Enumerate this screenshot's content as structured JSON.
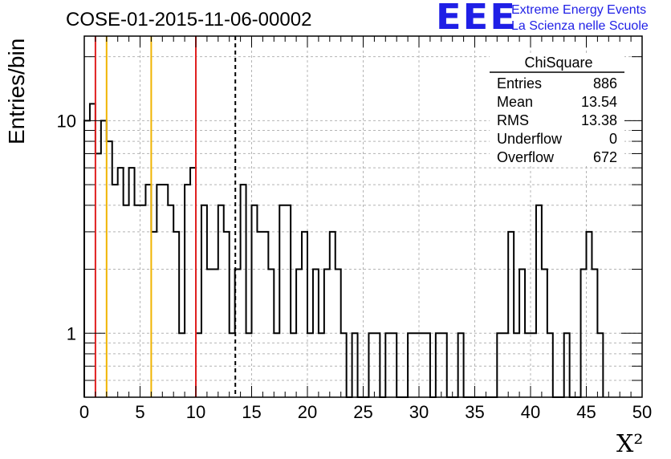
{
  "header": {
    "title": "COSE-01-2015-11-06-00002",
    "logo_text": "EEE",
    "logo_line1": "Extreme Energy Events",
    "logo_line2": "La Scienza nelle Scuole"
  },
  "colors": {
    "logo": "#1f1fe6",
    "histogram": "#000000",
    "red_line": "#e02020",
    "yellow_line": "#f0b400",
    "grid": "#b4b4b4"
  },
  "chart_data": {
    "type": "bar",
    "subtype": "step-histogram",
    "title": "COSE-01-2015-11-06-00002",
    "xlabel": "X²",
    "ylabel": "Entries/bin",
    "xlim": [
      0,
      50
    ],
    "ylim": [
      0.5,
      25
    ],
    "yscale": "log",
    "grid": true,
    "bin_width": 0.5,
    "bin_start": 0,
    "values": [
      10,
      12,
      7,
      10,
      8,
      5,
      6,
      4,
      6,
      4,
      4,
      5,
      3,
      5,
      5,
      4,
      3,
      1,
      5,
      6,
      1,
      4,
      2,
      2,
      4,
      3,
      1,
      2,
      5,
      1,
      4,
      3,
      3,
      2,
      1,
      4,
      4,
      1,
      2,
      3,
      1,
      2,
      1,
      2,
      3,
      2,
      1,
      0,
      1,
      0,
      0,
      1,
      1,
      0,
      1,
      1,
      0,
      0,
      1,
      1,
      1,
      1,
      0,
      1,
      1,
      0,
      0,
      1,
      0,
      0,
      0,
      0,
      0,
      0,
      1,
      1,
      3,
      1,
      2,
      1,
      1,
      4,
      2,
      1,
      0,
      0,
      1,
      0,
      0,
      2,
      3,
      2,
      1
    ],
    "x_ticks": [
      "0",
      "5",
      "10",
      "15",
      "20",
      "25",
      "30",
      "35",
      "40",
      "45",
      "50"
    ],
    "y_ticks": [
      "1",
      "10"
    ],
    "vertical_lines": [
      {
        "x": 1,
        "color": "red"
      },
      {
        "x": 2,
        "color": "yellow"
      },
      {
        "x": 6,
        "color": "yellow"
      },
      {
        "x": 10,
        "color": "red"
      },
      {
        "x": 13.54,
        "color": "black",
        "style": "dashed"
      }
    ],
    "stats_box": {
      "name": "ChiSquare",
      "rows": [
        {
          "label": "Entries",
          "value": "886"
        },
        {
          "label": "Mean",
          "value": "13.54"
        },
        {
          "label": "RMS",
          "value": "13.38"
        },
        {
          "label": "Underflow",
          "value": "0"
        },
        {
          "label": "Overflow",
          "value": "672"
        }
      ]
    }
  }
}
